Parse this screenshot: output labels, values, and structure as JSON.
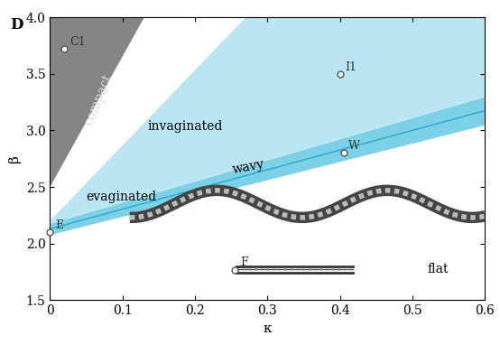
{
  "chart_data": {
    "type": "phase_diagram",
    "panel": "D",
    "x_label": "κ",
    "y_label": "β",
    "xlim": [
      0,
      0.6
    ],
    "ylim": [
      1.5,
      4.0
    ],
    "xticks": [
      0,
      0.1,
      0.2,
      0.3,
      0.4,
      0.5,
      0.6
    ],
    "yticks": [
      1.5,
      {
        "value": 2,
        "label": "2.0"
      },
      2.5,
      {
        "value": 3,
        "label": "3.0"
      },
      3.5,
      {
        "value": 4,
        "label": "4.0"
      }
    ],
    "compact_boundary": {
      "x": [
        0,
        0.13
      ],
      "y": [
        2.5,
        4.0
      ],
      "color": "#707070"
    },
    "invaginated_edge": {
      "x": [
        0,
        0.27
      ],
      "y": [
        2.2,
        4.0
      ],
      "color": "#d8f1f8"
    },
    "wavy_band": {
      "x": [
        0,
        0.6
      ],
      "lower": [
        2.08,
        3.05
      ],
      "upper": [
        2.18,
        3.3
      ],
      "color": "#5cc6e0"
    },
    "region_labels": [
      "compact",
      "invaginated",
      "wavy",
      "evaginated",
      "flat"
    ],
    "points": [
      {
        "label": "C1",
        "x": 0.02,
        "y": 3.72
      },
      {
        "label": "I1",
        "x": 0.4,
        "y": 3.5
      },
      {
        "label": "W",
        "x": 0.405,
        "y": 2.8
      },
      {
        "label": "E",
        "x": 0.0,
        "y": 2.1
      },
      {
        "label": "F",
        "x": 0.255,
        "y": 1.77
      }
    ]
  }
}
